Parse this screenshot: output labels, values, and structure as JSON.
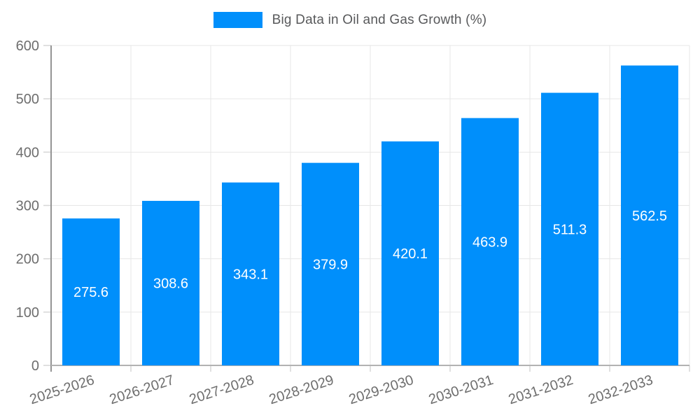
{
  "chart_data": {
    "type": "bar",
    "title": "Big Data in Oil and Gas Growth (%)",
    "xlabel": "",
    "ylabel": "",
    "categories": [
      "2025-2026",
      "2026-2027",
      "2027-2028",
      "2028-2029",
      "2029-2030",
      "2030-2031",
      "2031-2032",
      "2032-2033"
    ],
    "series": [
      {
        "name": "Big Data in Oil and Gas Growth (%)",
        "color": "#008FFB",
        "values": [
          275.6,
          308.6,
          343.1,
          379.9,
          420.1,
          463.9,
          511.3,
          562.5
        ]
      }
    ],
    "data_labels": [
      "275.6",
      "308.6",
      "343.1",
      "379.9",
      "420.1",
      "463.9",
      "511.3",
      "562.5"
    ],
    "y_tick_labels": [
      "0",
      "100",
      "200",
      "300",
      "400",
      "500",
      "600"
    ],
    "ylim": [
      0,
      600
    ],
    "ytick_step": 100,
    "grid": "on",
    "legend_position": "top"
  },
  "legend": {
    "label": "Big Data in Oil and Gas Growth (%)"
  },
  "colors": {
    "bar": "#008FFB",
    "grid": "#e7e7e7",
    "tick": "#d6d6d6",
    "y_axis_line": "#949494",
    "x_axis_line": "#b2b2b2",
    "tick_label": "#6e6e6e",
    "legend_text": "#58595b",
    "bar_value_label": "#ffffff",
    "background": "#ffffff"
  }
}
